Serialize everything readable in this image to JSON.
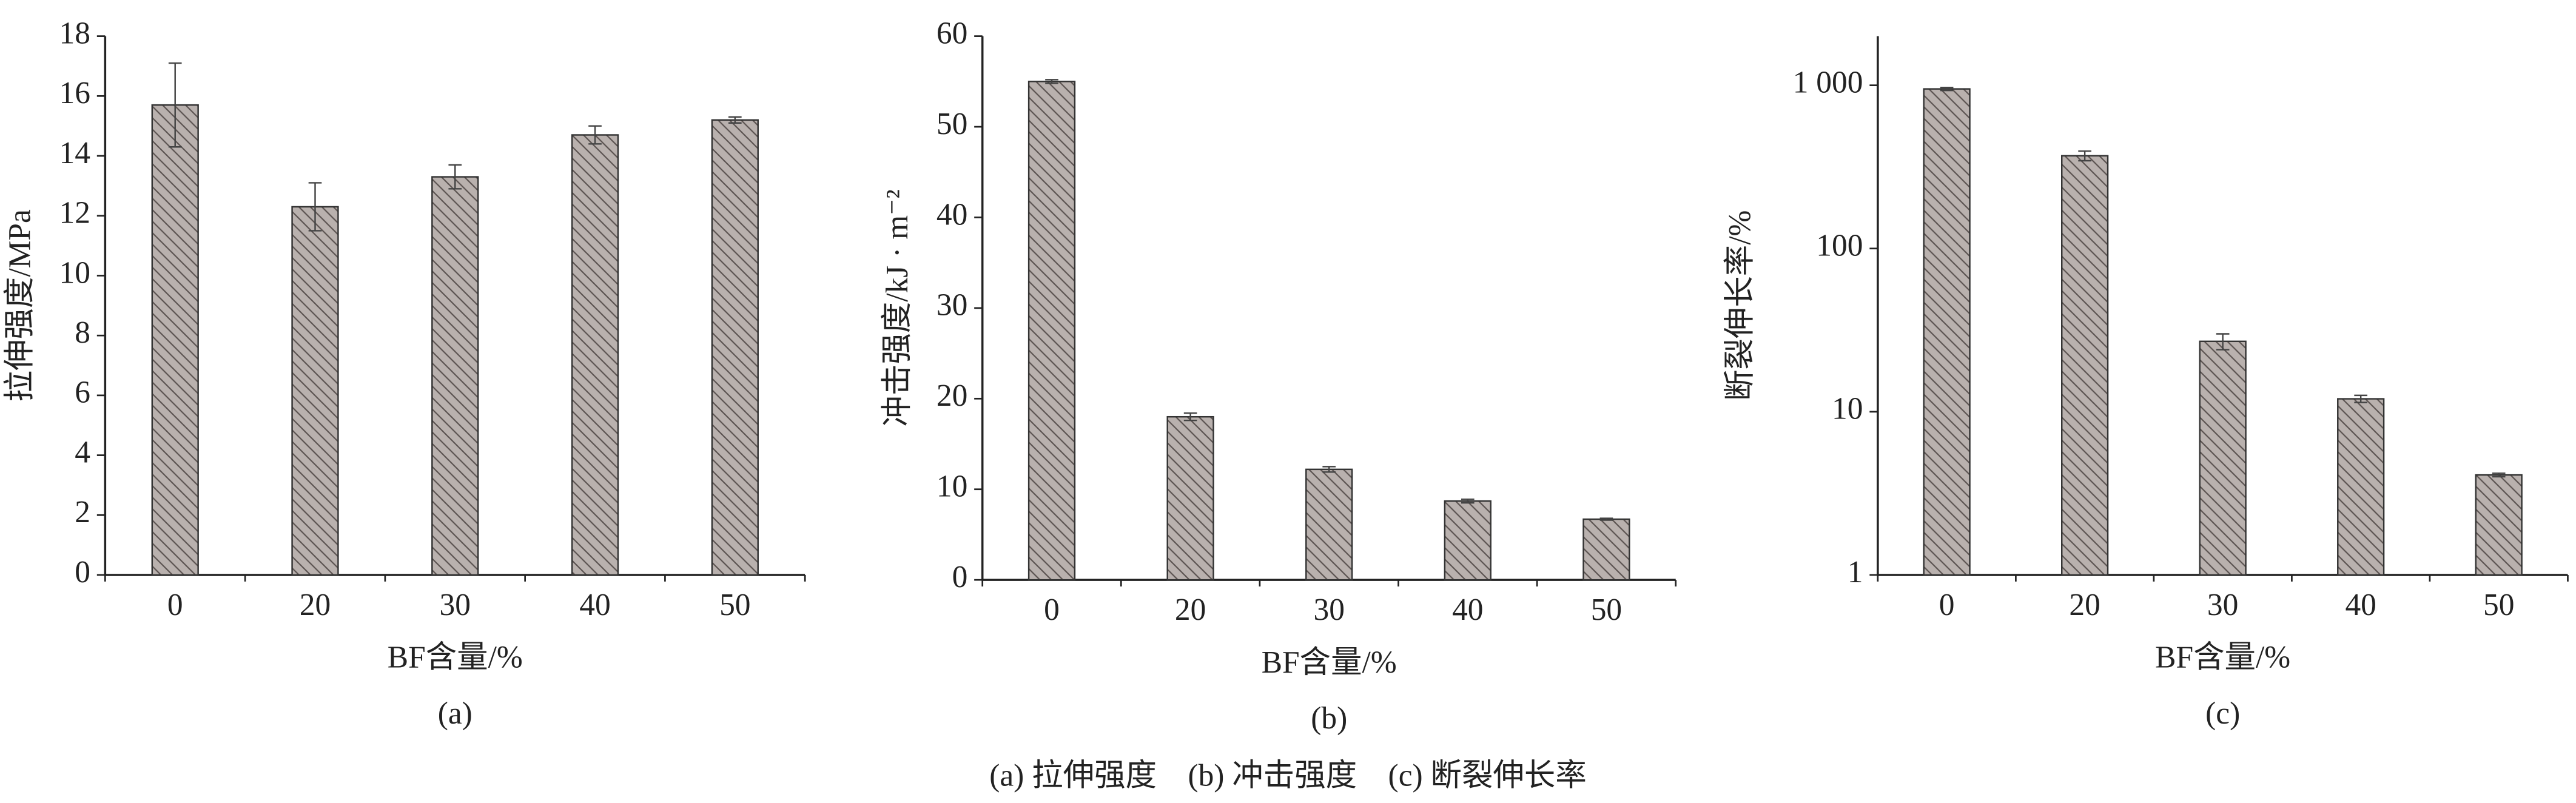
{
  "chart_data": [
    {
      "type": "bar",
      "ylabel": "拉伸强度/MPa",
      "xlabel": "BF含量/%",
      "caption": "(a)",
      "categories": [
        "0",
        "20",
        "30",
        "40",
        "50"
      ],
      "values": [
        15.7,
        12.3,
        13.3,
        14.7,
        15.2
      ],
      "errors": [
        1.4,
        0.8,
        0.4,
        0.3,
        0.1
      ],
      "color": "#b9b1ae",
      "ylim": [
        0,
        18
      ],
      "yticks": [
        0,
        2,
        4,
        6,
        8,
        10,
        12,
        14,
        16,
        18
      ],
      "log_scale": false
    },
    {
      "type": "bar",
      "ylabel": "冲击强度/kJ · m⁻²",
      "xlabel": "BF含量/%",
      "caption": "(b)",
      "categories": [
        "0",
        "20",
        "30",
        "40",
        "50"
      ],
      "values": [
        55,
        18,
        12.2,
        8.7,
        6.7
      ],
      "errors": [
        0.2,
        0.4,
        0.3,
        0.2,
        0.1
      ],
      "color": "#b9b1ae",
      "ylim": [
        0,
        60
      ],
      "yticks": [
        0,
        10,
        20,
        30,
        40,
        50,
        60
      ],
      "log_scale": false
    },
    {
      "type": "bar",
      "ylabel": "断裂伸长率/%",
      "xlabel": "BF含量/%",
      "caption": "(c)",
      "categories": [
        "0",
        "20",
        "30",
        "40",
        "50"
      ],
      "values": [
        950,
        370,
        27,
        12,
        4.1
      ],
      "errors": [
        20,
        25,
        3,
        0.6,
        0.1
      ],
      "color": "#b9b1ae",
      "ylim": [
        1,
        2000
      ],
      "yticks": [
        1,
        10,
        100,
        {
          "value": 1000,
          "label": "1 000"
        }
      ],
      "log_scale": true
    }
  ],
  "figure_caption": "(a) 拉伸强度　(b) 冲击强度　(c) 断裂伸长率"
}
